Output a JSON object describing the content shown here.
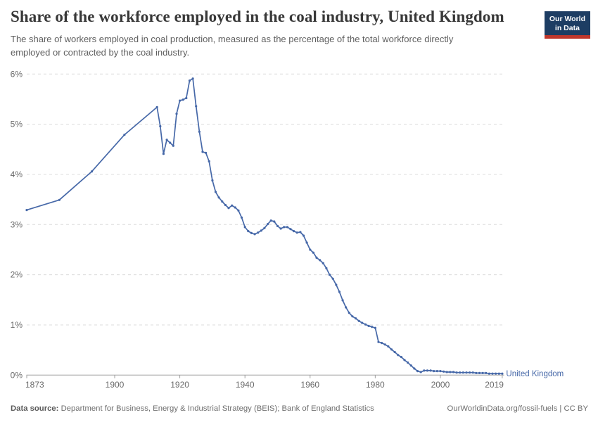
{
  "header": {
    "title": "Share of the workforce employed in the coal industry, United Kingdom",
    "subtitle_lines": [
      "The share of workers employed in coal production, measured as the percentage of the total workforce directly",
      "employed or contracted by the coal industry."
    ],
    "logo": {
      "line1": "Our World",
      "line2": "in Data",
      "bg_color": "#1d3d63",
      "accent_color": "#bf372c"
    }
  },
  "chart_data": {
    "type": "line",
    "title": "Share of the workforce employed in the coal industry, United Kingdom",
    "xlabel": "",
    "ylabel": "",
    "xlim": [
      1873,
      2019
    ],
    "ylim": [
      0,
      6
    ],
    "grid": "horizontal-dashed",
    "legend": "end-of-line-label",
    "x_ticks": [
      1873,
      1900,
      1920,
      1940,
      1960,
      1980,
      2000,
      2019
    ],
    "y_ticks": [
      {
        "value": 0,
        "label": "0%"
      },
      {
        "value": 1,
        "label": "1%"
      },
      {
        "value": 2,
        "label": "2%"
      },
      {
        "value": 3,
        "label": "3%"
      },
      {
        "value": 4,
        "label": "4%"
      },
      {
        "value": 5,
        "label": "5%"
      },
      {
        "value": 6,
        "label": "6%"
      }
    ],
    "colors": {
      "line": "#4668a8",
      "grid": "#dcdcdc",
      "axis": "#9e9e9e",
      "tick_text": "#696969"
    },
    "series": [
      {
        "name": "United Kingdom",
        "end_label": "United Kingdom",
        "points": [
          [
            1873,
            3.29
          ],
          [
            1883,
            3.49
          ],
          [
            1893,
            4.06
          ],
          [
            1903,
            4.79
          ],
          [
            1913,
            5.34
          ],
          [
            1914,
            4.96
          ],
          [
            1915,
            4.41
          ],
          [
            1916,
            4.69
          ],
          [
            1917,
            4.63
          ],
          [
            1918,
            4.57
          ],
          [
            1919,
            5.21
          ],
          [
            1920,
            5.47
          ],
          [
            1921,
            5.49
          ],
          [
            1922,
            5.52
          ],
          [
            1923,
            5.87
          ],
          [
            1924,
            5.91
          ],
          [
            1925,
            5.36
          ],
          [
            1926,
            4.85
          ],
          [
            1927,
            4.45
          ],
          [
            1928,
            4.43
          ],
          [
            1929,
            4.26
          ],
          [
            1930,
            3.88
          ],
          [
            1931,
            3.65
          ],
          [
            1932,
            3.54
          ],
          [
            1933,
            3.46
          ],
          [
            1934,
            3.39
          ],
          [
            1935,
            3.33
          ],
          [
            1936,
            3.38
          ],
          [
            1937,
            3.34
          ],
          [
            1938,
            3.28
          ],
          [
            1939,
            3.14
          ],
          [
            1940,
            2.95
          ],
          [
            1941,
            2.87
          ],
          [
            1942,
            2.83
          ],
          [
            1943,
            2.81
          ],
          [
            1944,
            2.84
          ],
          [
            1945,
            2.88
          ],
          [
            1946,
            2.93
          ],
          [
            1947,
            3.01
          ],
          [
            1948,
            3.08
          ],
          [
            1949,
            3.06
          ],
          [
            1950,
            2.97
          ],
          [
            1951,
            2.92
          ],
          [
            1952,
            2.95
          ],
          [
            1953,
            2.95
          ],
          [
            1954,
            2.91
          ],
          [
            1955,
            2.87
          ],
          [
            1956,
            2.84
          ],
          [
            1957,
            2.85
          ],
          [
            1958,
            2.78
          ],
          [
            1959,
            2.64
          ],
          [
            1960,
            2.5
          ],
          [
            1961,
            2.44
          ],
          [
            1962,
            2.34
          ],
          [
            1963,
            2.29
          ],
          [
            1964,
            2.23
          ],
          [
            1965,
            2.13
          ],
          [
            1966,
            2.0
          ],
          [
            1967,
            1.92
          ],
          [
            1968,
            1.8
          ],
          [
            1969,
            1.66
          ],
          [
            1970,
            1.49
          ],
          [
            1971,
            1.35
          ],
          [
            1972,
            1.24
          ],
          [
            1973,
            1.17
          ],
          [
            1974,
            1.13
          ],
          [
            1975,
            1.08
          ],
          [
            1976,
            1.04
          ],
          [
            1977,
            1.01
          ],
          [
            1978,
            0.98
          ],
          [
            1979,
            0.96
          ],
          [
            1980,
            0.94
          ],
          [
            1981,
            0.66
          ],
          [
            1982,
            0.64
          ],
          [
            1983,
            0.61
          ],
          [
            1984,
            0.57
          ],
          [
            1985,
            0.51
          ],
          [
            1986,
            0.46
          ],
          [
            1987,
            0.4
          ],
          [
            1988,
            0.36
          ],
          [
            1989,
            0.3
          ],
          [
            1990,
            0.25
          ],
          [
            1991,
            0.19
          ],
          [
            1992,
            0.13
          ],
          [
            1993,
            0.08
          ],
          [
            1994,
            0.06
          ],
          [
            1995,
            0.09
          ],
          [
            1996,
            0.09
          ],
          [
            1997,
            0.09
          ],
          [
            1998,
            0.08
          ],
          [
            1999,
            0.08
          ],
          [
            2000,
            0.08
          ],
          [
            2001,
            0.07
          ],
          [
            2002,
            0.06
          ],
          [
            2003,
            0.06
          ],
          [
            2004,
            0.06
          ],
          [
            2005,
            0.05
          ],
          [
            2006,
            0.05
          ],
          [
            2007,
            0.05
          ],
          [
            2008,
            0.05
          ],
          [
            2009,
            0.05
          ],
          [
            2010,
            0.05
          ],
          [
            2011,
            0.04
          ],
          [
            2012,
            0.04
          ],
          [
            2013,
            0.04
          ],
          [
            2014,
            0.04
          ],
          [
            2015,
            0.03
          ],
          [
            2016,
            0.03
          ],
          [
            2017,
            0.03
          ],
          [
            2018,
            0.03
          ],
          [
            2019,
            0.03
          ]
        ]
      }
    ]
  },
  "footer": {
    "datasource_label": "Data source:",
    "datasource_text": " Department for Business, Energy & Industrial Strategy (BEIS); Bank of England Statistics",
    "link": "OurWorldinData.org/fossil-fuels",
    "separator": " | ",
    "license": "CC BY"
  }
}
